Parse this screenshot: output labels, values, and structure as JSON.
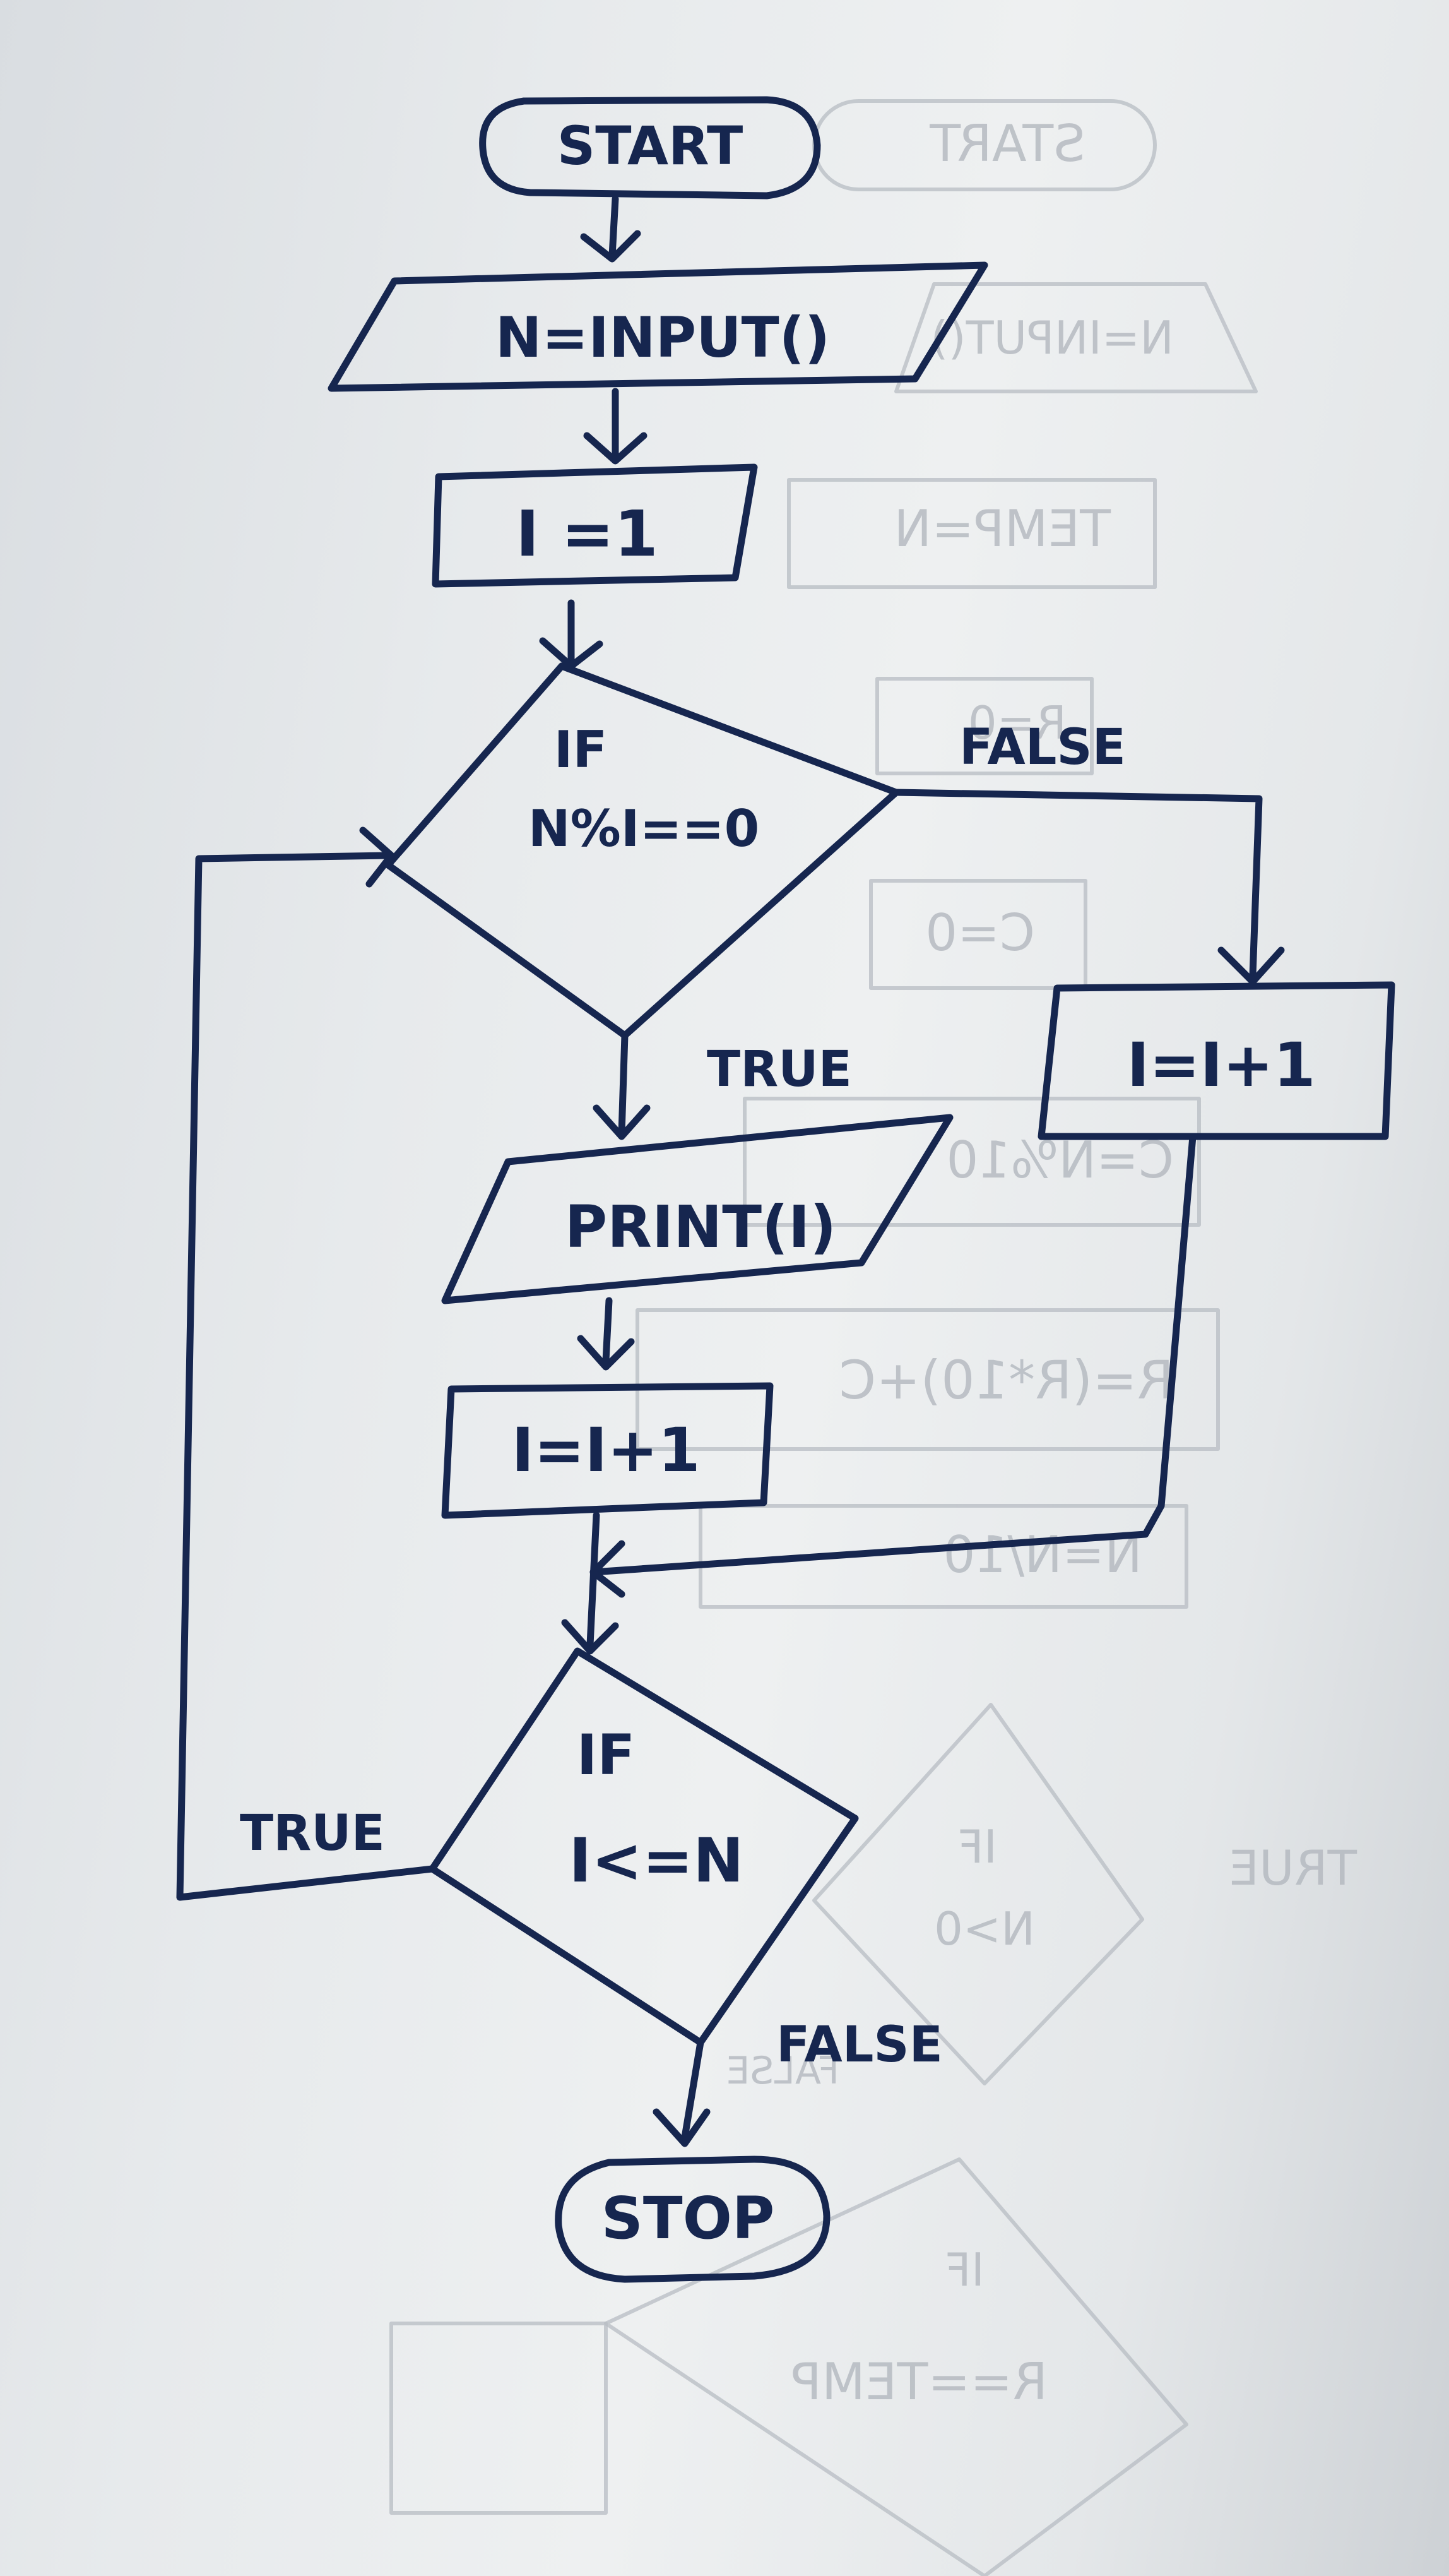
{
  "diagram": {
    "type": "flowchart",
    "nodes": {
      "start": "START",
      "input": "N=INPUT()",
      "init": "I =1",
      "cond1_line1": "IF",
      "cond1_line2": "N%I==0",
      "print": "PRINT(I)",
      "inc_true": "I=I+1",
      "inc_false": "I=I+1",
      "cond2_line1": "IF",
      "cond2_line2": "I<=N",
      "stop": "STOP"
    },
    "edge_labels": {
      "cond1_false": "FALSE",
      "cond1_true": "TRUE",
      "cond2_true": "TRUE",
      "cond2_false": "FALSE"
    },
    "bleed_through": {
      "start": "START",
      "input": "N=INPUT()",
      "temp": "TEMP=N",
      "r": "R=0",
      "c": "C=0",
      "mod": "C=N%10",
      "calc": "R=(R*10)+C",
      "div": "N=N/10",
      "if1_line1": "IF",
      "if1_line2": "N>0",
      "if1_true": "TRUE",
      "if1_false": "FALSE",
      "if2_line1": "IF",
      "if2_line2": "R==TEMP"
    }
  }
}
